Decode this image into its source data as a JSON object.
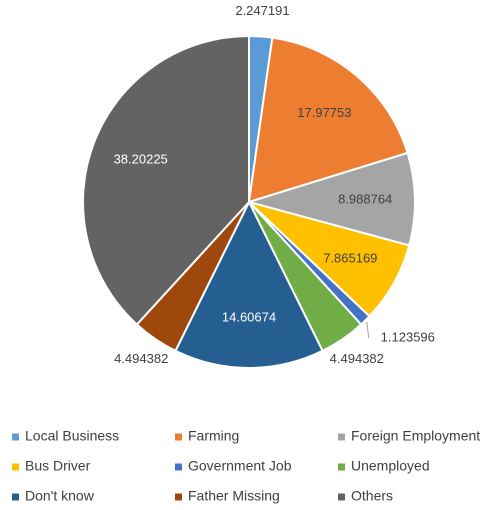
{
  "chart_data": {
    "type": "pie",
    "categories": [
      "Local Business",
      "Farming",
      "Foreign Employment",
      "Bus Driver",
      "Government Job",
      "Unemployed",
      "Don't know",
      "Father Missing",
      "Others"
    ],
    "values": [
      2.247191,
      17.97753,
      8.988764,
      7.865169,
      1.123596,
      4.494382,
      14.60674,
      4.494382,
      38.20225
    ],
    "colors": [
      "#5b9bd5",
      "#ed7d31",
      "#a5a5a5",
      "#ffc000",
      "#4472c4",
      "#70ad47",
      "#255e91",
      "#9e480e",
      "#636363"
    ],
    "legend": "bottom"
  }
}
